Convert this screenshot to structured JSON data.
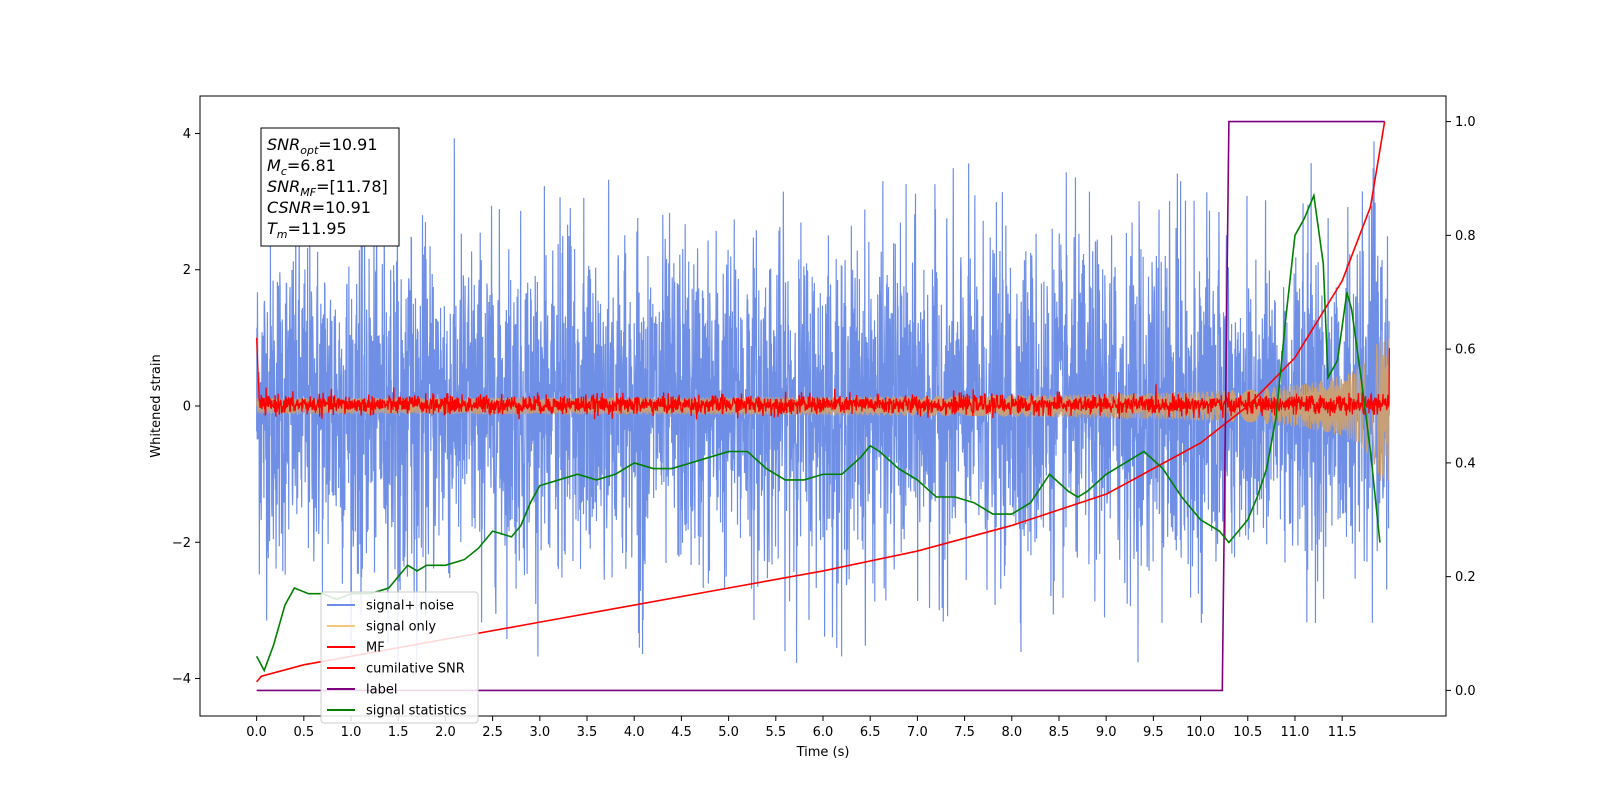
{
  "chart_data": {
    "type": "line",
    "xlabel": "Time (s)",
    "ylabel": "Whitened strain",
    "xlim": [
      -0.6,
      12.6
    ],
    "ylim": [
      -4.55,
      4.55
    ],
    "y2lim": [
      -0.045,
      1.045
    ],
    "x_ticks": [
      0.0,
      0.5,
      1.0,
      1.5,
      2.0,
      2.5,
      3.0,
      3.5,
      4.0,
      4.5,
      5.0,
      5.5,
      6.0,
      6.5,
      7.0,
      7.5,
      8.0,
      8.5,
      9.0,
      9.5,
      10.0,
      10.5,
      11.0,
      11.5
    ],
    "x_tick_labels": [
      "0.0",
      "0.5",
      "1.0",
      "1.5",
      "2.0",
      "2.5",
      "3.0",
      "3.5",
      "4.0",
      "4.5",
      "5.0",
      "5.5",
      "6.0",
      "6.5",
      "7.0",
      "7.5",
      "8.0",
      "8.5",
      "9.0",
      "9.5",
      "10.0",
      "10.5",
      "11.0",
      "11.5"
    ],
    "y_ticks": [
      -4,
      -2,
      0,
      2,
      4
    ],
    "y_tick_labels": [
      "−4",
      "−2",
      "0",
      "2",
      "4"
    ],
    "y2_ticks": [
      0.0,
      0.2,
      0.4,
      0.6,
      0.8,
      1.0
    ],
    "y2_tick_labels": [
      "0.0",
      "0.2",
      "0.4",
      "0.6",
      "0.8",
      "1.0"
    ],
    "annotation": [
      {
        "base": "SNR",
        "sub": "opt",
        "value": "=10.91"
      },
      {
        "base": "M",
        "sub": "c",
        "value": "=6.81"
      },
      {
        "base": "SNR",
        "sub": "MF",
        "value": "=[11.78]"
      },
      {
        "base": "CSNR",
        "sub": "",
        "value": "=10.91"
      },
      {
        "base": "T",
        "sub": "m",
        "value": "=11.95"
      }
    ],
    "legend_position": "lower-left",
    "series": [
      {
        "name": "signal+ noise",
        "color": "#6f8fe6",
        "axis": "left",
        "kind": "noise",
        "x_range": [
          0,
          12.0
        ],
        "std": 1.2,
        "typical_range": [
          -3.8,
          4.1
        ]
      },
      {
        "name": "signal only",
        "color": "#f5c77e",
        "axis": "left",
        "kind": "chirp",
        "x_range": [
          0,
          12.0
        ],
        "amplitude_start": 0.02,
        "amplitude_end": 1.1
      },
      {
        "name": "MF",
        "color": "#ff0000",
        "axis": "left",
        "kind": "noise",
        "x_range": [
          0,
          12.0
        ],
        "start_value": 1.0,
        "std": 0.07
      },
      {
        "name": "cumilative SNR",
        "color": "#ff0000",
        "axis": "right",
        "x": [
          0.0,
          0.05,
          0.5,
          1.0,
          2.0,
          3.0,
          4.0,
          5.0,
          6.0,
          7.0,
          8.0,
          9.0,
          10.0,
          10.5,
          11.0,
          11.5,
          11.8,
          11.95
        ],
        "y": [
          0.015,
          0.025,
          0.045,
          0.06,
          0.09,
          0.12,
          0.15,
          0.18,
          0.21,
          0.245,
          0.29,
          0.345,
          0.435,
          0.5,
          0.585,
          0.72,
          0.85,
          1.0
        ]
      },
      {
        "name": "label",
        "color": "#800080",
        "axis": "right",
        "x": [
          0.0,
          10.23,
          10.3,
          11.95
        ],
        "y": [
          0.0,
          0.0,
          1.0,
          1.0
        ]
      },
      {
        "name": "signal statistics",
        "color": "#008000",
        "axis": "right",
        "x": [
          0.0,
          0.08,
          0.18,
          0.3,
          0.4,
          0.55,
          0.7,
          0.85,
          1.0,
          1.2,
          1.4,
          1.5,
          1.6,
          1.7,
          1.8,
          2.0,
          2.2,
          2.35,
          2.5,
          2.7,
          2.8,
          2.9,
          3.0,
          3.2,
          3.4,
          3.6,
          3.8,
          4.0,
          4.2,
          4.4,
          4.6,
          4.8,
          5.0,
          5.2,
          5.4,
          5.6,
          5.8,
          6.0,
          6.2,
          6.4,
          6.5,
          6.6,
          6.8,
          7.0,
          7.2,
          7.4,
          7.6,
          7.8,
          8.0,
          8.2,
          8.4,
          8.6,
          8.7,
          8.8,
          9.0,
          9.2,
          9.4,
          9.6,
          9.8,
          10.0,
          10.1,
          10.2,
          10.3,
          10.4,
          10.5,
          10.6,
          10.7,
          10.8,
          10.9,
          11.0,
          11.1,
          11.2,
          11.3,
          11.35,
          11.45,
          11.55,
          11.6,
          11.7,
          11.8,
          11.9
        ],
        "y": [
          0.06,
          0.035,
          0.08,
          0.15,
          0.18,
          0.17,
          0.17,
          0.16,
          0.17,
          0.17,
          0.18,
          0.2,
          0.22,
          0.21,
          0.22,
          0.22,
          0.23,
          0.25,
          0.28,
          0.27,
          0.29,
          0.33,
          0.36,
          0.37,
          0.38,
          0.37,
          0.38,
          0.4,
          0.39,
          0.39,
          0.4,
          0.41,
          0.42,
          0.42,
          0.39,
          0.37,
          0.37,
          0.38,
          0.38,
          0.41,
          0.43,
          0.42,
          0.39,
          0.37,
          0.34,
          0.34,
          0.33,
          0.31,
          0.31,
          0.33,
          0.38,
          0.35,
          0.34,
          0.35,
          0.38,
          0.4,
          0.42,
          0.39,
          0.34,
          0.3,
          0.29,
          0.28,
          0.26,
          0.28,
          0.3,
          0.34,
          0.39,
          0.48,
          0.65,
          0.8,
          0.83,
          0.87,
          0.75,
          0.55,
          0.58,
          0.7,
          0.67,
          0.55,
          0.42,
          0.26
        ]
      }
    ]
  }
}
